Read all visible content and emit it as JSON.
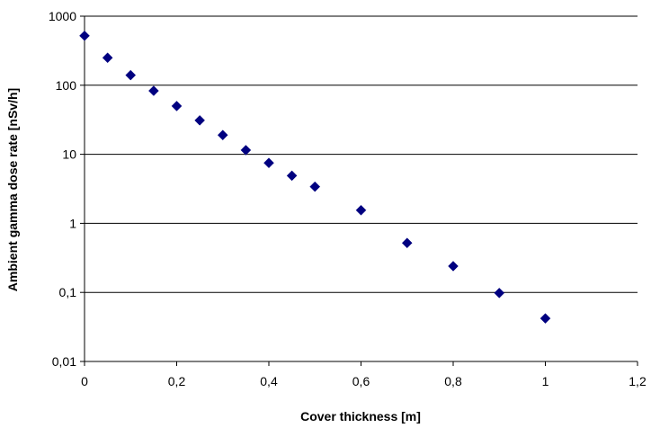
{
  "chart_data": {
    "type": "scatter",
    "title": "",
    "xlabel": "Cover thickness [m]",
    "ylabel": "Ambient gamma dose rate [nSv/h]",
    "xlim": [
      0,
      1.2
    ],
    "ylim": [
      0.01,
      1000
    ],
    "yscale": "log",
    "grid": "horizontal major gridlines",
    "legend": "none",
    "marker": "diamond",
    "marker_color": "#000080",
    "x_ticks": [
      "0",
      "0,2",
      "0,4",
      "0,6",
      "0,8",
      "1",
      "1,2"
    ],
    "x_tick_values": [
      0,
      0.2,
      0.4,
      0.6,
      0.8,
      1.0,
      1.2
    ],
    "y_ticks": [
      "0,01",
      "0,1",
      "1",
      "10",
      "100",
      "1000"
    ],
    "y_tick_values": [
      0.01,
      0.1,
      1,
      10,
      100,
      1000
    ],
    "series": [
      {
        "x": [
          0,
          0.05,
          0.1,
          0.15,
          0.2,
          0.25,
          0.3,
          0.35,
          0.4,
          0.45,
          0.5,
          0.6,
          0.7,
          0.8,
          0.9,
          1.0
        ],
        "y": [
          520,
          250,
          140,
          83,
          50,
          31,
          19,
          11.5,
          7.5,
          4.9,
          3.4,
          1.55,
          0.52,
          0.24,
          0.098,
          0.042
        ]
      }
    ]
  }
}
